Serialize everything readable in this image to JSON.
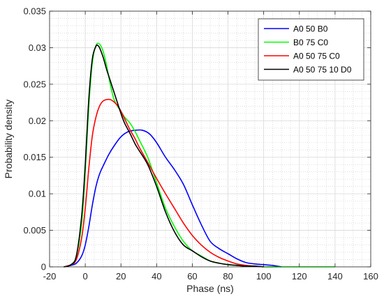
{
  "chart_data": {
    "type": "line",
    "xlabel": "Phase (ns)",
    "ylabel": "Probability density",
    "xlim": [
      -20,
      160
    ],
    "ylim": [
      0,
      0.035
    ],
    "xticks": [
      -20,
      0,
      20,
      40,
      60,
      80,
      100,
      120,
      140,
      160
    ],
    "xtick_labels": [
      "-20",
      "0",
      "20",
      "40",
      "60",
      "80",
      "100",
      "120",
      "140",
      "160"
    ],
    "yticks": [
      0,
      0.005,
      0.01,
      0.015,
      0.02,
      0.025,
      0.03,
      0.035
    ],
    "ytick_labels": [
      "0",
      "0.005",
      "0.01",
      "0.015",
      "0.02",
      "0.025",
      "0.03",
      "0.035"
    ],
    "grid": true,
    "minor_grid": true,
    "legend_position": "top-right",
    "series": [
      {
        "name": "A0 50 B0",
        "color": "#0000ff",
        "x": [
          -12,
          -8,
          -5,
          -2,
          0,
          2,
          4,
          6,
          8,
          10,
          13,
          16,
          20,
          24,
          28,
          32,
          36,
          40,
          45,
          50,
          55,
          60,
          65,
          70,
          75,
          80,
          85,
          90,
          95,
          100,
          105,
          110
        ],
        "y": [
          0,
          0.0002,
          0.0005,
          0.0015,
          0.003,
          0.0055,
          0.0085,
          0.011,
          0.0127,
          0.0138,
          0.0153,
          0.0165,
          0.0178,
          0.0185,
          0.0187,
          0.0187,
          0.0182,
          0.017,
          0.015,
          0.0133,
          0.0113,
          0.0085,
          0.0058,
          0.0035,
          0.0025,
          0.0018,
          0.0011,
          0.0006,
          0.0004,
          0.0003,
          0.0002,
          0
        ]
      },
      {
        "name": "B0 75 C0",
        "color": "#00ff00",
        "x": [
          -12,
          -8,
          -5,
          -2,
          0,
          2,
          4,
          6,
          8,
          10,
          12,
          14,
          16,
          18,
          20,
          22,
          25,
          28,
          30,
          35,
          40,
          45,
          50,
          55,
          60,
          65,
          70,
          75,
          80,
          85,
          90,
          95,
          100,
          110,
          120,
          130,
          140
        ],
        "y": [
          0,
          0.0003,
          0.0015,
          0.006,
          0.013,
          0.022,
          0.028,
          0.0303,
          0.0305,
          0.0295,
          0.0275,
          0.025,
          0.023,
          0.022,
          0.0213,
          0.0205,
          0.0197,
          0.0185,
          0.0175,
          0.015,
          0.0115,
          0.008,
          0.0055,
          0.0035,
          0.0022,
          0.0015,
          0.0008,
          0.0005,
          0.0003,
          0.0002,
          0.0001,
          0.0001,
          0,
          0,
          0,
          0,
          0
        ]
      },
      {
        "name": "A0 50 75 C0",
        "color": "#ff0000",
        "x": [
          -12,
          -8,
          -5,
          -2,
          0,
          2,
          4,
          6,
          8,
          10,
          12,
          14,
          16,
          18,
          20,
          22,
          25,
          28,
          30,
          35,
          40,
          45,
          50,
          55,
          60,
          65,
          70,
          75,
          80,
          85,
          90,
          95,
          100
        ],
        "y": [
          0,
          0.0003,
          0.001,
          0.004,
          0.008,
          0.0135,
          0.018,
          0.0205,
          0.022,
          0.0227,
          0.0229,
          0.0229,
          0.0226,
          0.0221,
          0.0213,
          0.0203,
          0.0188,
          0.0175,
          0.0165,
          0.0143,
          0.0121,
          0.01,
          0.008,
          0.006,
          0.0043,
          0.003,
          0.002,
          0.0013,
          0.0008,
          0.0004,
          0.0002,
          0.0001,
          0
        ]
      },
      {
        "name": "A0 50 75 10 D0",
        "color": "#000000",
        "x": [
          -12,
          -8,
          -5,
          -2,
          0,
          2,
          4,
          6,
          7,
          8,
          10,
          12,
          14,
          16,
          18,
          20,
          22,
          25,
          28,
          30,
          35,
          40,
          45,
          50,
          55,
          60,
          65,
          70,
          75,
          80,
          85,
          90,
          95,
          100
        ],
        "y": [
          0,
          0.0003,
          0.0015,
          0.007,
          0.014,
          0.023,
          0.0285,
          0.0302,
          0.0303,
          0.03,
          0.0287,
          0.027,
          0.0255,
          0.024,
          0.0225,
          0.021,
          0.0197,
          0.0183,
          0.0168,
          0.016,
          0.014,
          0.011,
          0.0075,
          0.0048,
          0.003,
          0.0022,
          0.0014,
          0.0008,
          0.0005,
          0.0003,
          0.0002,
          0.0001,
          0.0001,
          0
        ]
      }
    ]
  }
}
